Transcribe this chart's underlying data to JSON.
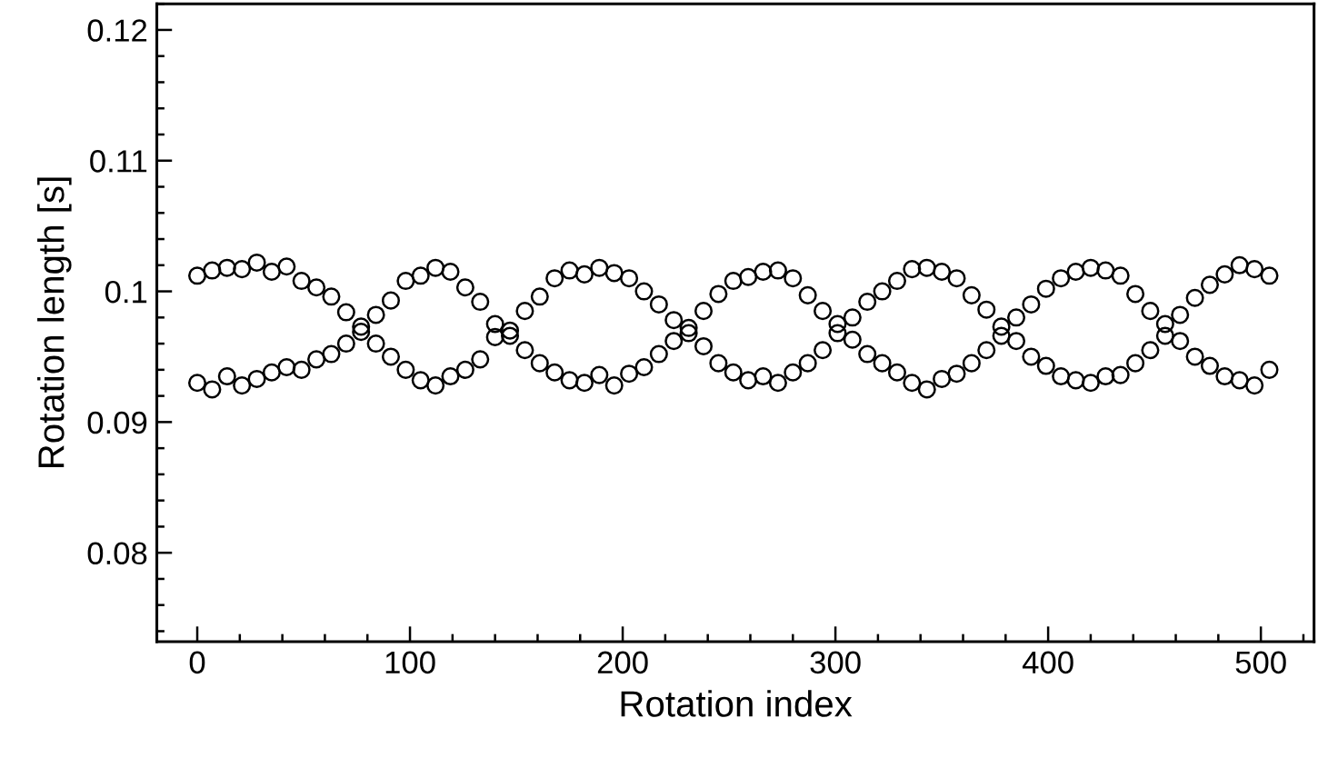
{
  "chart_data": {
    "type": "scatter",
    "xlabel": "Rotation index",
    "ylabel": "Rotation length [s]",
    "marker": "circle",
    "grid": false,
    "xlim": [
      -19,
      525
    ],
    "ylim": [
      0.0732,
      0.122
    ],
    "xticks": [
      0,
      100,
      200,
      300,
      400,
      500
    ],
    "yticks": [
      0.08,
      0.09,
      0.1,
      0.11,
      0.12
    ],
    "series": [
      {
        "color": "#000000",
        "x": [
          0,
          7,
          14,
          21,
          28,
          35,
          42,
          49,
          56,
          63,
          70,
          77,
          84,
          91,
          98,
          105,
          112,
          119,
          126,
          133,
          140,
          147,
          154,
          161,
          168,
          175,
          182,
          189,
          196,
          203,
          210,
          217,
          224,
          231,
          238,
          245,
          252,
          259,
          266,
          273,
          280,
          287,
          294,
          301,
          308,
          315,
          322,
          329,
          336,
          343,
          350,
          357,
          364,
          371,
          378,
          385,
          392,
          399,
          406,
          413,
          420,
          427,
          434,
          441,
          448,
          455,
          462,
          469,
          476,
          483,
          490,
          497,
          504
        ],
        "values": [
          0.1012,
          0.1016,
          0.1018,
          0.1017,
          0.1022,
          0.1015,
          0.1019,
          0.1008,
          0.1003,
          0.0996,
          0.0984,
          0.0973,
          0.0982,
          0.0993,
          0.1008,
          0.1012,
          0.1018,
          0.1015,
          0.1003,
          0.0992,
          0.0975,
          0.097,
          0.0985,
          0.0996,
          0.101,
          0.1016,
          0.1013,
          0.1018,
          0.1014,
          0.101,
          0.1,
          0.099,
          0.0978,
          0.0972,
          0.0985,
          0.0998,
          0.1008,
          0.1011,
          0.1015,
          0.1016,
          0.101,
          0.0997,
          0.0985,
          0.0975,
          0.098,
          0.0992,
          0.1,
          0.1008,
          0.1017,
          0.1018,
          0.1015,
          0.101,
          0.0997,
          0.0986,
          0.0973,
          0.098,
          0.099,
          0.1002,
          0.101,
          0.1015,
          0.1018,
          0.1016,
          0.1012,
          0.0998,
          0.0985,
          0.0975,
          0.0982,
          0.0995,
          0.1005,
          0.1013,
          0.102,
          0.1017,
          0.1012
        ]
      },
      {
        "color": "#000000",
        "x": [
          0,
          7,
          14,
          21,
          28,
          35,
          42,
          49,
          56,
          63,
          70,
          77,
          84,
          91,
          98,
          105,
          112,
          119,
          126,
          133,
          140,
          147,
          154,
          161,
          168,
          175,
          182,
          189,
          196,
          203,
          210,
          217,
          224,
          231,
          238,
          245,
          252,
          259,
          266,
          273,
          280,
          287,
          294,
          301,
          308,
          315,
          322,
          329,
          336,
          343,
          350,
          357,
          364,
          371,
          378,
          385,
          392,
          399,
          406,
          413,
          420,
          427,
          434,
          441,
          448,
          455,
          462,
          469,
          476,
          483,
          490,
          497,
          504
        ],
        "values": [
          0.093,
          0.0925,
          0.0935,
          0.0928,
          0.0933,
          0.0938,
          0.0942,
          0.094,
          0.0948,
          0.0952,
          0.096,
          0.0969,
          0.096,
          0.095,
          0.094,
          0.0932,
          0.0928,
          0.0935,
          0.094,
          0.0948,
          0.0965,
          0.0966,
          0.0955,
          0.0945,
          0.0938,
          0.0932,
          0.093,
          0.0936,
          0.0928,
          0.0937,
          0.0942,
          0.0952,
          0.0962,
          0.0968,
          0.0958,
          0.0945,
          0.0938,
          0.0932,
          0.0935,
          0.093,
          0.0938,
          0.0945,
          0.0955,
          0.0968,
          0.0963,
          0.0952,
          0.0945,
          0.0938,
          0.093,
          0.0925,
          0.0933,
          0.0937,
          0.0945,
          0.0955,
          0.0966,
          0.0962,
          0.095,
          0.0943,
          0.0935,
          0.0932,
          0.093,
          0.0935,
          0.0936,
          0.0945,
          0.0955,
          0.0966,
          0.0962,
          0.095,
          0.0943,
          0.0935,
          0.0932,
          0.0928,
          0.094
        ]
      }
    ]
  }
}
